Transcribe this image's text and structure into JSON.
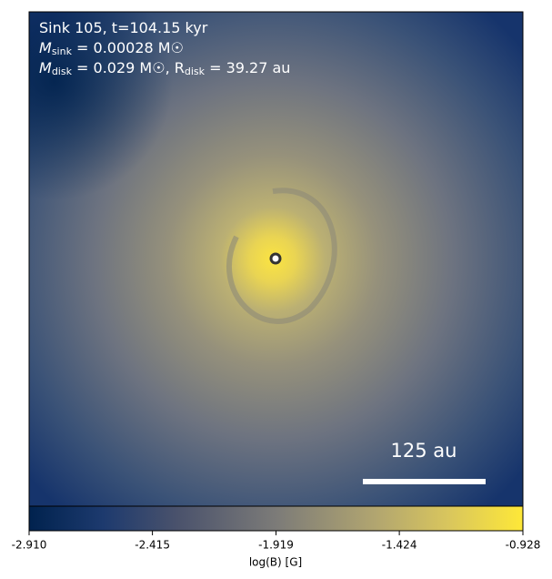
{
  "chart_data": {
    "type": "image",
    "annotations": [
      [
        "Sink 105, t=104.15 kyr"
      ],
      [
        "M",
        "sink",
        " = 0.00028 M☉"
      ],
      [
        "M",
        "disk",
        " = 0.029 M☉, R",
        "disk",
        " = 39.27 au"
      ]
    ],
    "scale_bar_label": "125 au",
    "colorbar_label": "log(B) [G]",
    "clim": [
      -2.91,
      -0.928
    ],
    "cticks": [
      {
        "value": -2.91,
        "label": "-2.910"
      },
      {
        "value": -2.415,
        "label": "-2.415"
      },
      {
        "value": -1.919,
        "label": "-1.919"
      },
      {
        "value": -1.424,
        "label": "-1.424"
      },
      {
        "value": -0.928,
        "label": "-0.928"
      }
    ],
    "colormap": "cividis"
  }
}
